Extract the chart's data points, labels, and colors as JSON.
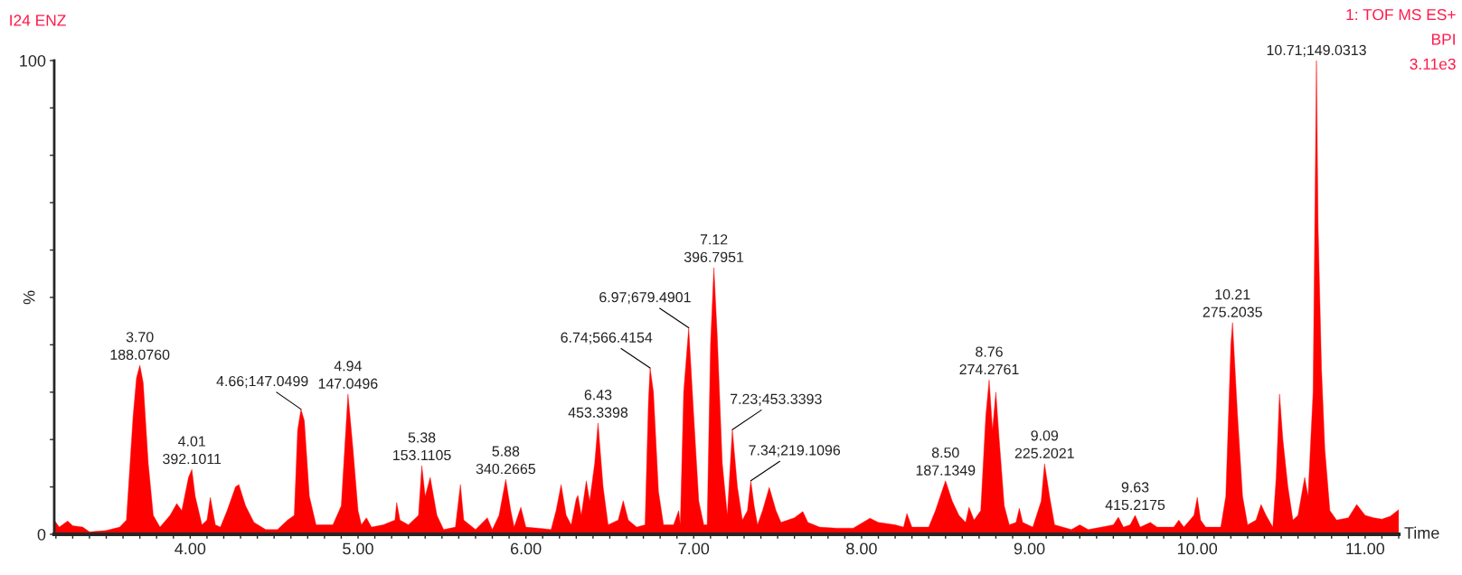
{
  "chart_data": {
    "type": "area",
    "title": "I24 ENZ",
    "subtitle": "1: TOF MS ES+\nBPI\n3.11e3",
    "xlabel": "Time",
    "ylabel": "%",
    "x": [
      3.19,
      3.22,
      3.27,
      3.3,
      3.36,
      3.4,
      3.5,
      3.58,
      3.62,
      3.66,
      3.68,
      3.7,
      3.72,
      3.75,
      3.78,
      3.82,
      3.88,
      3.92,
      3.95,
      3.99,
      4.01,
      4.03,
      4.07,
      4.1,
      4.12,
      4.15,
      4.18,
      4.22,
      4.27,
      4.29,
      4.33,
      4.38,
      4.45,
      4.52,
      4.58,
      4.62,
      4.64,
      4.66,
      4.68,
      4.71,
      4.75,
      4.85,
      4.9,
      4.94,
      4.97,
      5.0,
      5.02,
      5.05,
      5.08,
      5.15,
      5.22,
      5.23,
      5.25,
      5.3,
      5.36,
      5.38,
      5.4,
      5.43,
      5.47,
      5.51,
      5.58,
      5.61,
      5.63,
      5.7,
      5.77,
      5.8,
      5.84,
      5.88,
      5.91,
      5.93,
      5.97,
      6.0,
      6.1,
      6.15,
      6.18,
      6.21,
      6.24,
      6.27,
      6.3,
      6.31,
      6.33,
      6.36,
      6.38,
      6.41,
      6.43,
      6.46,
      6.49,
      6.55,
      6.58,
      6.61,
      6.66,
      6.71,
      6.73,
      6.74,
      6.76,
      6.79,
      6.82,
      6.88,
      6.91,
      6.92,
      6.94,
      6.97,
      7.0,
      7.03,
      7.06,
      7.08,
      7.1,
      7.12,
      7.14,
      7.17,
      7.2,
      7.21,
      7.23,
      7.26,
      7.29,
      7.32,
      7.34,
      7.36,
      7.38,
      7.41,
      7.45,
      7.49,
      7.52,
      7.6,
      7.65,
      7.68,
      7.75,
      7.85,
      7.95,
      8.05,
      8.1,
      8.2,
      8.25,
      8.27,
      8.3,
      8.4,
      8.44,
      8.5,
      8.54,
      8.58,
      8.62,
      8.64,
      8.67,
      8.71,
      8.74,
      8.76,
      8.78,
      8.8,
      8.82,
      8.85,
      8.88,
      8.92,
      8.94,
      8.96,
      9.02,
      9.07,
      9.09,
      9.12,
      9.15,
      9.25,
      9.3,
      9.35,
      9.43,
      9.5,
      9.53,
      9.56,
      9.6,
      9.63,
      9.66,
      9.72,
      9.76,
      9.86,
      9.89,
      9.92,
      9.98,
      10.0,
      10.02,
      10.05,
      10.14,
      10.17,
      10.2,
      10.21,
      10.24,
      10.27,
      10.3,
      10.35,
      10.38,
      10.41,
      10.45,
      10.47,
      10.49,
      10.51,
      10.54,
      10.57,
      10.6,
      10.64,
      10.66,
      10.69,
      10.7,
      10.71,
      10.72,
      10.74,
      10.76,
      10.79,
      10.83,
      10.9,
      10.95,
      11.0,
      11.05,
      11.1,
      11.15,
      11.2
    ],
    "series": [
      {
        "color": "#ff0000",
        "values": [
          3.0,
          1.5,
          2.8,
          1.8,
          1.5,
          0.5,
          0.8,
          1.5,
          3,
          25,
          33,
          35.7,
          32,
          15,
          4,
          1.5,
          4,
          6.5,
          5,
          12,
          13.7,
          8,
          2,
          3,
          7.8,
          2,
          1.5,
          5,
          10,
          10.5,
          6,
          2.5,
          1,
          1,
          3,
          4,
          22,
          26.4,
          24,
          8,
          2,
          2,
          6,
          29.6,
          18,
          5,
          2,
          3.5,
          1.5,
          2,
          3,
          6.7,
          3,
          2,
          4,
          14.5,
          8,
          12,
          4,
          1,
          1.5,
          10.5,
          3,
          1,
          3.5,
          1,
          4,
          11.6,
          5,
          1.5,
          5.7,
          1.5,
          1.2,
          1,
          5,
          10.5,
          4,
          2,
          7.5,
          8.2,
          4,
          11.3,
          7,
          15,
          23.5,
          10,
          2,
          3,
          7.1,
          3,
          1.5,
          2,
          28,
          35.1,
          30,
          9,
          2,
          2,
          5,
          2,
          30,
          43.6,
          25,
          7,
          2,
          2,
          40,
          56.3,
          42,
          15,
          4,
          10,
          22.1,
          10,
          3,
          5,
          11.3,
          6,
          2,
          5,
          9.9,
          5,
          2.5,
          3.5,
          4.8,
          2.5,
          1.5,
          1.3,
          1.3,
          3.4,
          2.5,
          2,
          1.5,
          4.4,
          1.5,
          1.5,
          5,
          11.3,
          7,
          4,
          2.5,
          5.7,
          3,
          5,
          25,
          32.6,
          22,
          30,
          20,
          6,
          2,
          2.5,
          5.5,
          2.5,
          1.5,
          7,
          14.9,
          8,
          2,
          1,
          2,
          1,
          1.5,
          2,
          3.6,
          1.5,
          2,
          4.0,
          1.5,
          2.5,
          1.5,
          1.5,
          3,
          1.5,
          4,
          7.8,
          3,
          1.5,
          1.5,
          8,
          40,
          44.7,
          25,
          8,
          2,
          3,
          6.3,
          4,
          1.5,
          12,
          29.6,
          20,
          10,
          3,
          4,
          12,
          8,
          30,
          65,
          100,
          65,
          35,
          18,
          5,
          3,
          3.5,
          6.3,
          4,
          3.5,
          3.2,
          3.8,
          5.2
        ]
      }
    ],
    "xlim": [
      3.19,
      11.2
    ],
    "ylim": [
      0,
      100
    ],
    "xticks": [
      {
        "value": 3.2,
        "label": null
      },
      {
        "value": 3.3,
        "label": null
      },
      {
        "value": 3.4,
        "label": null
      },
      {
        "value": 3.5,
        "label": null
      },
      {
        "value": 3.6,
        "label": null
      },
      {
        "value": 3.7,
        "label": null
      },
      {
        "value": 3.8,
        "label": null
      },
      {
        "value": 3.9,
        "label": null
      },
      {
        "value": 4,
        "label": "4.00"
      },
      {
        "value": 4.1,
        "label": null
      },
      {
        "value": 4.2,
        "label": null
      },
      {
        "value": 4.3,
        "label": null
      },
      {
        "value": 4.4,
        "label": null
      },
      {
        "value": 4.5,
        "label": null
      },
      {
        "value": 4.6,
        "label": null
      },
      {
        "value": 4.7,
        "label": null
      },
      {
        "value": 4.8,
        "label": null
      },
      {
        "value": 4.9,
        "label": null
      },
      {
        "value": 5,
        "label": "5.00"
      },
      {
        "value": 5.1,
        "label": null
      },
      {
        "value": 5.2,
        "label": null
      },
      {
        "value": 5.3,
        "label": null
      },
      {
        "value": 5.4,
        "label": null
      },
      {
        "value": 5.5,
        "label": null
      },
      {
        "value": 5.6,
        "label": null
      },
      {
        "value": 5.7,
        "label": null
      },
      {
        "value": 5.8,
        "label": null
      },
      {
        "value": 5.9,
        "label": null
      },
      {
        "value": 6,
        "label": "6.00"
      },
      {
        "value": 6.1,
        "label": null
      },
      {
        "value": 6.2,
        "label": null
      },
      {
        "value": 6.3,
        "label": null
      },
      {
        "value": 6.4,
        "label": null
      },
      {
        "value": 6.5,
        "label": null
      },
      {
        "value": 6.6,
        "label": null
      },
      {
        "value": 6.7,
        "label": null
      },
      {
        "value": 6.8,
        "label": null
      },
      {
        "value": 6.9,
        "label": null
      },
      {
        "value": 7,
        "label": "7.00"
      },
      {
        "value": 7.1,
        "label": null
      },
      {
        "value": 7.2,
        "label": null
      },
      {
        "value": 7.3,
        "label": null
      },
      {
        "value": 7.4,
        "label": null
      },
      {
        "value": 7.5,
        "label": null
      },
      {
        "value": 7.6,
        "label": null
      },
      {
        "value": 7.7,
        "label": null
      },
      {
        "value": 7.8,
        "label": null
      },
      {
        "value": 7.9,
        "label": null
      },
      {
        "value": 8,
        "label": "8.00"
      },
      {
        "value": 8.1,
        "label": null
      },
      {
        "value": 8.2,
        "label": null
      },
      {
        "value": 8.3,
        "label": null
      },
      {
        "value": 8.4,
        "label": null
      },
      {
        "value": 8.5,
        "label": null
      },
      {
        "value": 8.6,
        "label": null
      },
      {
        "value": 8.7,
        "label": null
      },
      {
        "value": 8.8,
        "label": null
      },
      {
        "value": 8.9,
        "label": null
      },
      {
        "value": 9,
        "label": "9.00"
      },
      {
        "value": 9.1,
        "label": null
      },
      {
        "value": 9.2,
        "label": null
      },
      {
        "value": 9.3,
        "label": null
      },
      {
        "value": 9.4,
        "label": null
      },
      {
        "value": 9.5,
        "label": null
      },
      {
        "value": 9.6,
        "label": null
      },
      {
        "value": 9.7,
        "label": null
      },
      {
        "value": 9.8,
        "label": null
      },
      {
        "value": 9.9,
        "label": null
      },
      {
        "value": 10,
        "label": "10.00"
      },
      {
        "value": 10.1,
        "label": null
      },
      {
        "value": 10.2,
        "label": null
      },
      {
        "value": 10.3,
        "label": null
      },
      {
        "value": 10.4,
        "label": null
      },
      {
        "value": 10.5,
        "label": null
      },
      {
        "value": 10.6,
        "label": null
      },
      {
        "value": 10.7,
        "label": null
      },
      {
        "value": 10.8,
        "label": null
      },
      {
        "value": 10.9,
        "label": null
      },
      {
        "value": 11,
        "label": "11.00"
      },
      {
        "value": 11.1,
        "label": null
      },
      {
        "value": 11.2,
        "label": null
      }
    ],
    "yticks": [
      0,
      {
        "value": 10,
        "label": null
      },
      {
        "value": 20,
        "label": null
      },
      {
        "value": 30,
        "label": null
      },
      {
        "value": 40,
        "label": null
      },
      {
        "value": 50,
        "label": null
      },
      {
        "value": 60,
        "label": null
      },
      {
        "value": 70,
        "label": null
      },
      {
        "value": 80,
        "label": null
      },
      {
        "value": 90,
        "label": null
      },
      100
    ],
    "grid": false,
    "legend": false,
    "annotations": [
      {
        "text": "3.70\n188.0760",
        "x": 3.7,
        "y": 35.7
      },
      {
        "text": "4.01\n392.1011",
        "x": 4.01,
        "y": 13.7
      },
      {
        "text": "4.66;147.0499",
        "x": 4.66,
        "y": 26.4
      },
      {
        "text": "4.94\n147.0496",
        "x": 4.94,
        "y": 29.6
      },
      {
        "text": "5.38\n153.1105",
        "x": 5.38,
        "y": 14.5
      },
      {
        "text": "5.88\n340.2665",
        "x": 5.88,
        "y": 11.6
      },
      {
        "text": "6.43\n453.3398",
        "x": 6.43,
        "y": 23.5
      },
      {
        "text": "6.74;566.4154",
        "x": 6.74,
        "y": 35.1
      },
      {
        "text": "6.97;679.4901",
        "x": 6.97,
        "y": 43.6
      },
      {
        "text": "7.12\n396.7951",
        "x": 7.12,
        "y": 56.3
      },
      {
        "text": "7.23;453.3393",
        "x": 7.23,
        "y": 22.1
      },
      {
        "text": "7.34;219.1096",
        "x": 7.34,
        "y": 11.3
      },
      {
        "text": "8.50\n187.1349",
        "x": 8.5,
        "y": 11.3
      },
      {
        "text": "8.76\n274.2761",
        "x": 8.76,
        "y": 32.6
      },
      {
        "text": "9.09\n225.2021",
        "x": 9.09,
        "y": 14.9
      },
      {
        "text": "9.63\n415.2175",
        "x": 9.63,
        "y": 4.0
      },
      {
        "text": "10.21\n275.2035",
        "x": 10.21,
        "y": 44.7
      },
      {
        "text": "10.71;149.0313",
        "x": 10.71,
        "y": 100
      }
    ]
  }
}
